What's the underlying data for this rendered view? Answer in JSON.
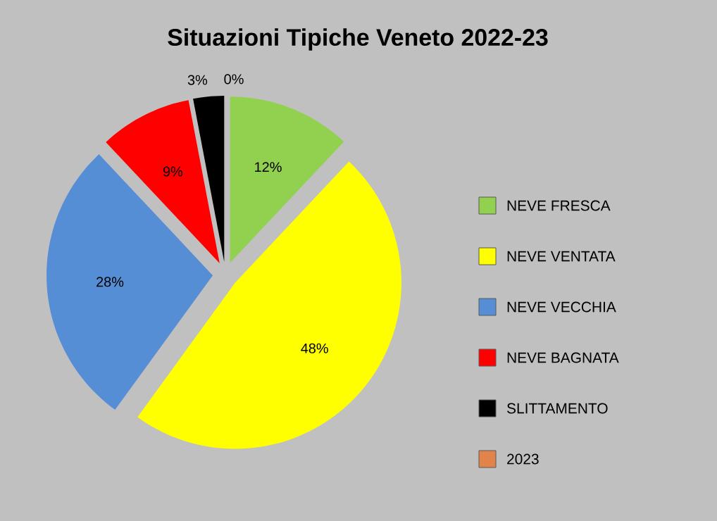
{
  "chart_data": {
    "type": "pie",
    "title": "Situazioni Tipiche Veneto 2022-23",
    "categories": [
      "NEVE FRESCA",
      "NEVE VENTATA",
      "NEVE VECCHIA",
      "NEVE BAGNATA",
      "SLITTAMENTO",
      "2023"
    ],
    "values": [
      12,
      48,
      28,
      9,
      3,
      0
    ],
    "colors": [
      "#92d050",
      "#ffff00",
      "#558ed5",
      "#ff0000",
      "#000000",
      "#e0844b"
    ],
    "value_labels": [
      "12%",
      "48%",
      "28%",
      "9%",
      "3%",
      "0%"
    ],
    "legend": "right"
  }
}
